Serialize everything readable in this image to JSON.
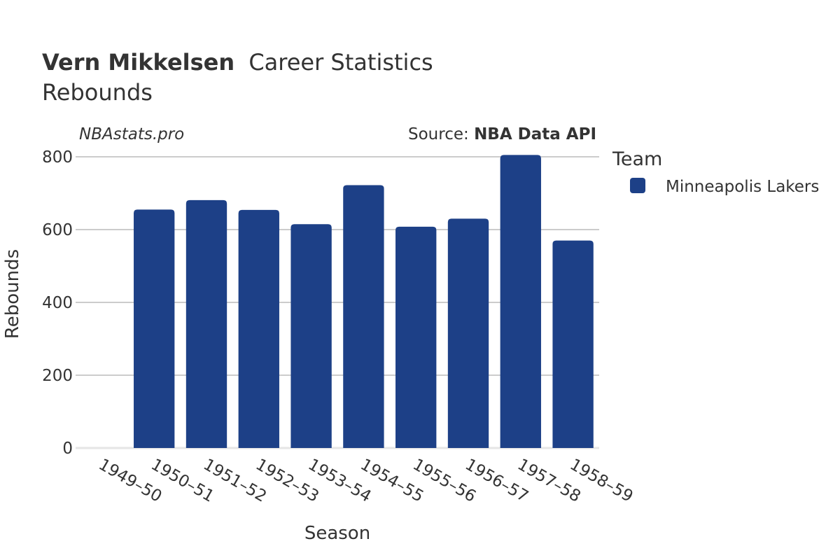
{
  "header": {
    "title_bold": "Vern Mikkelsen",
    "title_rest": "Career Statistics",
    "subtitle": "Rebounds"
  },
  "watermark": "NBAstats.pro",
  "source": {
    "prefix": "Source: ",
    "name": "NBA Data API"
  },
  "legend": {
    "title": "Team",
    "items": [
      {
        "label": "Minneapolis Lakers",
        "color": "#1d4087"
      }
    ]
  },
  "chart_data": {
    "type": "bar",
    "xlabel": "Season",
    "ylabel": "Rebounds",
    "ylim": [
      0,
      800
    ],
    "yticks": [
      0,
      200,
      400,
      600,
      800
    ],
    "grid": true,
    "legend_position": "right",
    "categories": [
      "1949–50",
      "1950–51",
      "1951–52",
      "1952–53",
      "1953–54",
      "1954–55",
      "1955–56",
      "1956–57",
      "1957–58",
      "1958–59"
    ],
    "series": [
      {
        "name": "Minneapolis Lakers",
        "color": "#1d4087",
        "values": [
          null,
          655,
          681,
          654,
          615,
          722,
          608,
          630,
          805,
          570
        ]
      }
    ]
  }
}
